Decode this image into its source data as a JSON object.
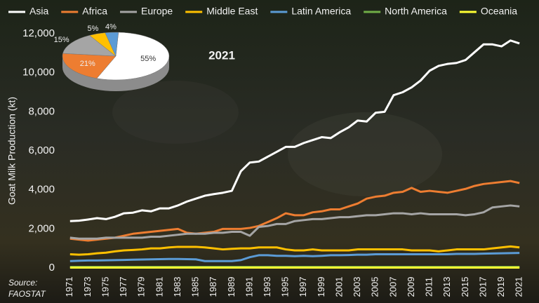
{
  "chart_data": [
    {
      "type": "line",
      "y_axis_label": "Goat Milk Production (kt)",
      "source": [
        "Source:",
        "FAOSTAT"
      ],
      "x": [
        1971,
        1972,
        1973,
        1974,
        1975,
        1976,
        1977,
        1978,
        1979,
        1980,
        1981,
        1982,
        1983,
        1984,
        1985,
        1986,
        1987,
        1988,
        1989,
        1990,
        1991,
        1992,
        1993,
        1994,
        1995,
        1996,
        1997,
        1998,
        1999,
        2000,
        2001,
        2002,
        2003,
        2004,
        2005,
        2006,
        2007,
        2008,
        2009,
        2010,
        2011,
        2012,
        2013,
        2014,
        2015,
        2016,
        2017,
        2018,
        2019,
        2020,
        2021
      ],
      "xlim": [
        1970,
        2022
      ],
      "xticks": [
        1971,
        1973,
        1975,
        1977,
        1979,
        1981,
        1983,
        1985,
        1987,
        1989,
        1991,
        1993,
        1995,
        1997,
        1999,
        2001,
        2003,
        2005,
        2007,
        2009,
        2011,
        2013,
        2015,
        2017,
        2019,
        2021
      ],
      "ylim": [
        0,
        12000
      ],
      "yticks": [
        0,
        {
          "value": 2000,
          "label": "2,000"
        },
        {
          "value": 4000,
          "label": "4,000"
        },
        {
          "value": 6000,
          "label": "6,000"
        },
        {
          "value": 8000,
          "label": "8,000"
        },
        {
          "value": 10000,
          "label": "10,000"
        },
        {
          "value": 12000,
          "label": "12,000"
        }
      ],
      "legend": "top",
      "series": [
        {
          "name": "Asia",
          "color": "#ffffff",
          "values": [
            2400,
            2420,
            2480,
            2550,
            2500,
            2620,
            2800,
            2830,
            2950,
            2900,
            3050,
            3050,
            3200,
            3400,
            3550,
            3700,
            3780,
            3850,
            3950,
            4950,
            5400,
            5450,
            5700,
            5950,
            6200,
            6200,
            6400,
            6550,
            6700,
            6650,
            6950,
            7200,
            7550,
            7500,
            7950,
            8000,
            8850,
            9000,
            9250,
            9600,
            10100,
            10350,
            10450,
            10500,
            10650,
            11050,
            11450,
            11450,
            11350,
            11650,
            11500
          ]
        },
        {
          "name": "Africa",
          "color": "#ed7d31",
          "values": [
            1500,
            1450,
            1400,
            1450,
            1500,
            1550,
            1650,
            1750,
            1800,
            1850,
            1900,
            1950,
            2000,
            1800,
            1750,
            1800,
            1850,
            2000,
            2000,
            2000,
            2050,
            2150,
            2350,
            2550,
            2800,
            2700,
            2700,
            2850,
            2900,
            3000,
            3000,
            3150,
            3300,
            3550,
            3650,
            3700,
            3850,
            3900,
            4100,
            3900,
            3950,
            3900,
            3850,
            3950,
            4050,
            4200,
            4300,
            4350,
            4400,
            4450,
            4350
          ]
        },
        {
          "name": "Europe",
          "color": "#a5a5a5",
          "values": [
            1550,
            1500,
            1500,
            1500,
            1550,
            1550,
            1550,
            1550,
            1550,
            1600,
            1600,
            1650,
            1700,
            1750,
            1750,
            1750,
            1800,
            1800,
            1850,
            1850,
            1650,
            2100,
            2150,
            2250,
            2250,
            2400,
            2450,
            2500,
            2500,
            2550,
            2600,
            2600,
            2650,
            2700,
            2700,
            2750,
            2800,
            2800,
            2750,
            2800,
            2750,
            2750,
            2750,
            2750,
            2700,
            2750,
            2850,
            3100,
            3150,
            3200,
            3150
          ]
        },
        {
          "name": "Middle East",
          "color": "#ffc000",
          "values": [
            700,
            680,
            700,
            750,
            780,
            850,
            900,
            920,
            950,
            1000,
            1000,
            1050,
            1080,
            1080,
            1080,
            1050,
            1000,
            950,
            980,
            1000,
            1000,
            1050,
            1050,
            1050,
            950,
            900,
            900,
            950,
            900,
            900,
            900,
            900,
            950,
            950,
            950,
            950,
            950,
            950,
            900,
            900,
            900,
            850,
            900,
            950,
            950,
            950,
            950,
            1000,
            1050,
            1100,
            1050
          ]
        },
        {
          "name": "Latin America",
          "color": "#5b9bd5",
          "values": [
            350,
            370,
            380,
            380,
            390,
            400,
            410,
            420,
            430,
            440,
            450,
            460,
            460,
            450,
            440,
            350,
            350,
            350,
            350,
            400,
            550,
            650,
            650,
            620,
            620,
            600,
            620,
            600,
            620,
            650,
            650,
            660,
            680,
            680,
            700,
            700,
            700,
            700,
            700,
            700,
            700,
            700,
            700,
            720,
            720,
            720,
            730,
            740,
            750,
            760,
            770
          ]
        },
        {
          "name": "North America",
          "color": "#70ad47",
          "values": [
            50,
            50,
            50,
            50,
            50,
            50,
            50,
            50,
            50,
            50,
            50,
            50,
            50,
            50,
            50,
            50,
            50,
            50,
            50,
            50,
            50,
            50,
            50,
            50,
            50,
            50,
            50,
            50,
            50,
            50,
            50,
            50,
            50,
            50,
            50,
            50,
            50,
            50,
            50,
            50,
            50,
            50,
            50,
            50,
            50,
            50,
            50,
            50,
            50,
            50,
            50
          ]
        },
        {
          "name": "Oceania",
          "color": "#ffff33",
          "values": [
            20,
            20,
            20,
            20,
            20,
            20,
            20,
            20,
            20,
            20,
            20,
            20,
            20,
            20,
            20,
            20,
            20,
            20,
            20,
            20,
            20,
            20,
            20,
            20,
            20,
            20,
            20,
            20,
            20,
            20,
            20,
            20,
            20,
            20,
            20,
            20,
            20,
            20,
            20,
            20,
            20,
            20,
            20,
            20,
            20,
            20,
            20,
            20,
            20,
            20,
            20
          ]
        }
      ]
    },
    {
      "type": "pie",
      "title": "2021",
      "categories": [
        "Asia",
        "Africa",
        "Europe",
        "Middle East",
        "Latin America"
      ],
      "values": [
        55,
        21,
        15,
        5,
        4
      ],
      "value_labels": [
        "55%",
        "21%",
        "15%",
        "5%",
        "4%"
      ],
      "colors": [
        "#ffffff",
        "#ed7d31",
        "#a5a5a5",
        "#ffc000",
        "#5b9bd5"
      ]
    }
  ]
}
